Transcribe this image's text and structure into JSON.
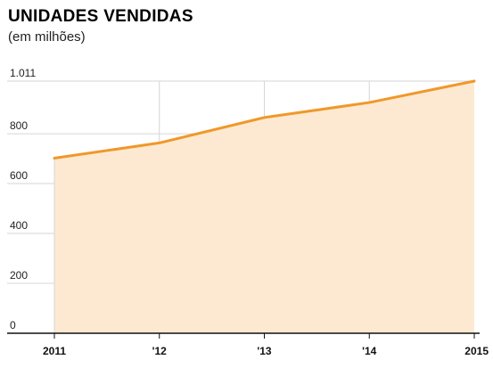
{
  "chart_data": {
    "type": "area",
    "title": "UNIDADES VENDIDAS",
    "subtitle": "(em milhões)",
    "xlabel": "",
    "ylabel": "",
    "categories": [
      "2011",
      "'12",
      "'13",
      "'14",
      "2015"
    ],
    "series": [
      {
        "values": [
          702,
          763,
          865,
          925,
          1011
        ]
      }
    ],
    "ylim": [
      0,
      1011
    ],
    "yticks": [
      0,
      200,
      400,
      600,
      800,
      1011
    ],
    "ytick_labels": [
      "0",
      "200",
      "400",
      "600",
      "800",
      "1.011"
    ],
    "grid": true,
    "legend": "none",
    "colors": {
      "line": "#f0982a",
      "fill": "#fde9d2",
      "grid": "#d6d6d6",
      "baseline": "#111111"
    }
  }
}
